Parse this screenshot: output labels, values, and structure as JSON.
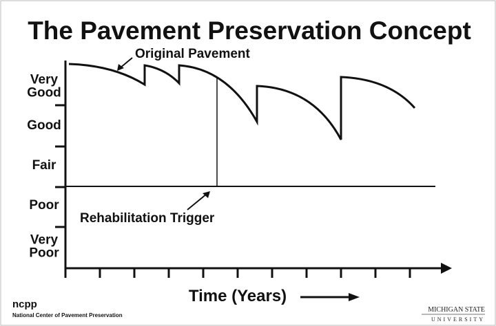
{
  "title": "The Pavement Preservation Concept",
  "curve_label": "Original Pavement",
  "trigger_label": "Rehabilitation Trigger",
  "y_levels": [
    "Very\nGood",
    "Good",
    "Fair",
    "Poor",
    "Very\nPoor"
  ],
  "x_label": "Time (Years)",
  "footer": {
    "logo": "ncpp",
    "org": "National Center of Pavement Preservation",
    "university_line1": "MICHIGAN STATE",
    "university_line2": "UNIVERSITY"
  }
}
